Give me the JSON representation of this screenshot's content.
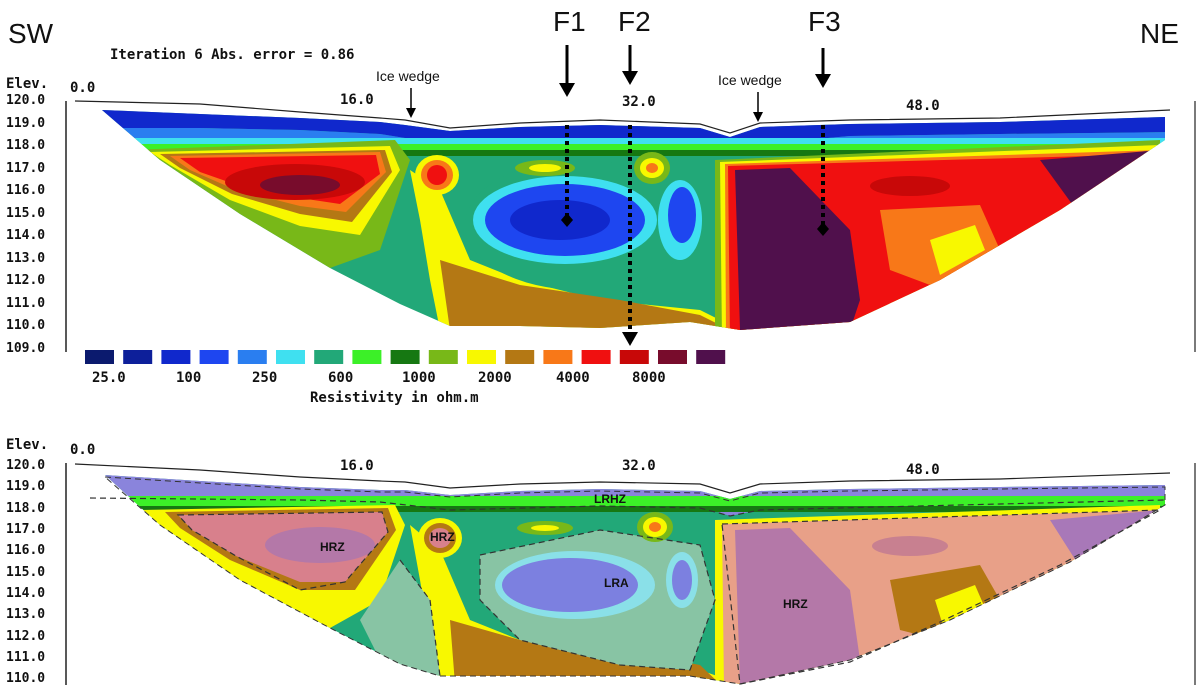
{
  "labels": {
    "sw": "SW",
    "ne": "NE",
    "iteration": "Iteration 6 Abs. error = 0.86",
    "f1": "F1",
    "f2": "F2",
    "f3": "F3",
    "ice_wedge_1": "Ice wedge",
    "ice_wedge_2": "Ice wedge",
    "elev_top": "Elev.",
    "elev_bottom": "Elev.",
    "x0_top": "0.0",
    "x0_bottom": "0.0",
    "resistivity": "Resistivity in ohm.m"
  },
  "x_ticks": [
    "16.0",
    "32.0",
    "48.0"
  ],
  "y_ticks_top": [
    "120.0",
    "119.0",
    "118.0",
    "117.0",
    "116.0",
    "115.0",
    "114.0",
    "113.0",
    "112.0",
    "111.0",
    "110.0",
    "109.0"
  ],
  "y_ticks_bottom": [
    "120.0",
    "119.0",
    "118.0",
    "117.0",
    "116.0",
    "115.0",
    "114.0",
    "113.0",
    "112.0",
    "111.0",
    "110.0"
  ],
  "legend": {
    "colors": [
      "#0b1a6e",
      "#0d1f9a",
      "#1028cc",
      "#1e46f0",
      "#2a7ef0",
      "#3fe0f0",
      "#22a878",
      "#3cf028",
      "#167812",
      "#78b818",
      "#f8f800",
      "#b47814",
      "#f87818",
      "#f01010",
      "#c80808",
      "#780c2c",
      "#50104c"
    ],
    "labels": [
      "25.0",
      "100",
      "250",
      "600",
      "1000",
      "2000",
      "4000",
      "8000"
    ]
  },
  "zones": {
    "hrz_1": "HRZ",
    "hrz_2": "HRZ",
    "hrz_3": "HRZ",
    "lra": "LRA",
    "lrhz": "LRHZ"
  }
}
